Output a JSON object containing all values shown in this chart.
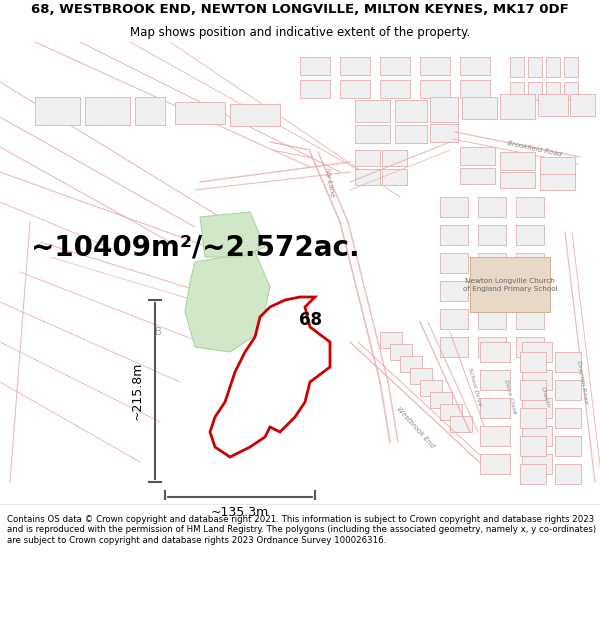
{
  "title_line1": "68, WESTBROOK END, NEWTON LONGVILLE, MILTON KEYNES, MK17 0DF",
  "title_line2": "Map shows position and indicative extent of the property.",
  "area_text": "~10409m²/~2.572ac.",
  "property_number": "68",
  "dim_width": "~135.3m",
  "dim_height": "~215.8m",
  "footer_text": "Contains OS data © Crown copyright and database right 2021. This information is subject to Crown copyright and database rights 2023 and is reproduced with the permission of HM Land Registry. The polygons (including the associated geometry, namely x, y co-ordinates) are subject to Crown copyright and database rights 2023 Ordnance Survey 100026316.",
  "map_bg": "#ffffff",
  "property_fill": "#d8ead0",
  "property_edge": "#cc0000",
  "road_color": "#e8aaaa",
  "building_fill": "#f0f0f0",
  "building_edge": "#e0a0a0",
  "green_fill": "#d0e8c8",
  "green_edge": "#b0d0a8",
  "school_fill": "#e8d8c8",
  "school_edge": "#d0b090",
  "arrow_color": "#555555",
  "text_color": "#000000",
  "title_fontsize": 9.5,
  "subtitle_fontsize": 8.5,
  "area_fontsize": 20,
  "label_fontsize": 12,
  "footer_fontsize": 6.2,
  "road_label_color": "#888888",
  "road_label_size": 5.0
}
